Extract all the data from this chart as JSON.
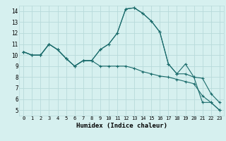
{
  "xlabel": "Humidex (Indice chaleur)",
  "ylabel": "",
  "bg_color": "#d6f0ef",
  "grid_color": "#b8dada",
  "line_color": "#1a6b6b",
  "xlim": [
    -0.5,
    23.5
  ],
  "ylim": [
    4.5,
    14.5
  ],
  "xticks": [
    0,
    1,
    2,
    3,
    4,
    5,
    6,
    7,
    8,
    9,
    10,
    11,
    12,
    13,
    14,
    15,
    16,
    17,
    18,
    19,
    20,
    21,
    22,
    23
  ],
  "yticks": [
    5,
    6,
    7,
    8,
    9,
    10,
    11,
    12,
    13,
    14
  ],
  "series": [
    [
      10.3,
      10.0,
      10.0,
      11.0,
      10.5,
      9.7,
      9.0,
      9.5,
      9.5,
      10.5,
      11.0,
      12.0,
      14.2,
      14.3,
      13.8,
      13.1,
      12.1,
      9.2,
      8.3,
      8.3,
      8.0,
      7.9,
      6.5,
      5.7
    ],
    [
      10.3,
      10.0,
      10.0,
      11.0,
      10.5,
      9.7,
      9.0,
      9.5,
      9.5,
      10.5,
      11.0,
      12.0,
      14.2,
      14.3,
      13.8,
      13.1,
      12.1,
      9.2,
      8.3,
      9.2,
      8.0,
      5.7,
      5.7,
      5.0
    ],
    [
      10.3,
      10.0,
      10.0,
      11.0,
      10.5,
      9.7,
      9.0,
      9.5,
      9.5,
      9.0,
      9.0,
      9.0,
      9.0,
      8.8,
      8.5,
      8.3,
      8.1,
      8.0,
      7.8,
      7.6,
      7.4,
      6.3,
      5.7,
      5.0
    ]
  ]
}
